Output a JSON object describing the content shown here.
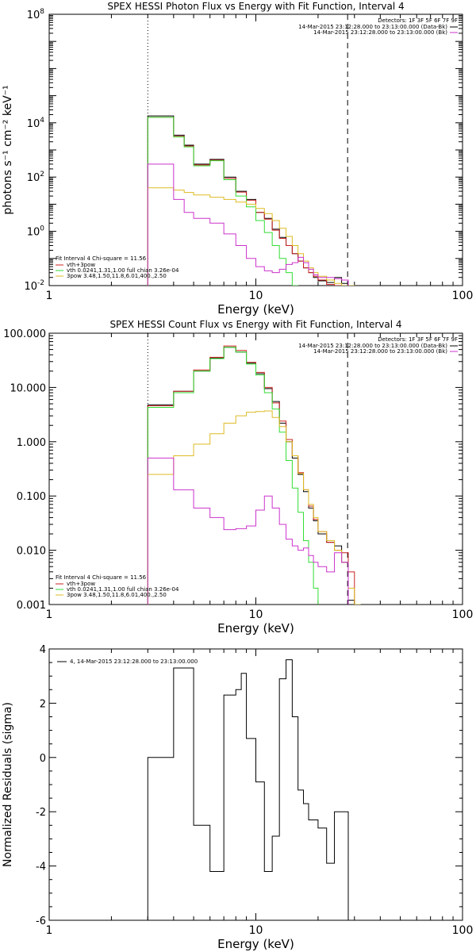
{
  "figure": {
    "background": "#ffffff",
    "axis_color": "#000000"
  },
  "chart_data": [
    {
      "type": "line",
      "step": true,
      "title": "SPEX HESSI Photon Flux vs Energy with Fit Function, Interval 4",
      "xlabel": "Energy (keV)",
      "ylabel": "photons s⁻¹ cm⁻² keV⁻¹",
      "xscale": "log",
      "yscale": "log",
      "xlim": [
        1,
        100
      ],
      "ylim": [
        0.01,
        100000000
      ],
      "xticks": [
        1,
        10,
        100
      ],
      "xtick_labels": [
        "1",
        "10",
        "100"
      ],
      "yticks": [
        0.01,
        1,
        100,
        10000,
        100000000
      ],
      "ytick_labels": [
        {
          "mantissa": "10",
          "exp": "-2"
        },
        {
          "mantissa": "10",
          "exp": "0"
        },
        {
          "mantissa": "10",
          "exp": "2"
        },
        {
          "mantissa": "10",
          "exp": "4"
        },
        {
          "mantissa": "10",
          "exp": "8"
        }
      ],
      "vlines": [
        {
          "x": 3.0,
          "style": "dotted",
          "color": "#000000"
        },
        {
          "x": 27.8,
          "style": "dashed",
          "color": "#000000"
        }
      ],
      "legend_topright": {
        "header": "Detectors: 1F 3F 5F 6F 7F 9F",
        "entries": [
          {
            "label": "14-Mar-2015 23:12:28.000 to 23:13:00.000 (Data-Bk)",
            "color": "#000000"
          },
          {
            "label": "14-Mar-2015 23:12:28.000 to 23:13:00.000 (Bk)",
            "color": "#cc33cc"
          }
        ]
      },
      "legend_bottomleft": {
        "header": "Fit Interval 4   Chi-square = 11.56",
        "entries": [
          {
            "label": "vth+3pow",
            "color": "#cc2222"
          },
          {
            "label": "vth 0.0241,1.31,1.00  full chian 3.26e-04",
            "color": "#33dd33"
          },
          {
            "label": "3pow 3.48,1.50,11.8,6.01,400.,2.50",
            "color": "#ddbb22"
          }
        ]
      },
      "edges": [
        3.0,
        3.5,
        4.0,
        4.5,
        5.0,
        6.0,
        7.0,
        8.0,
        9.0,
        10.0,
        11.0,
        12.0,
        13.0,
        14.0,
        15.0,
        16.0,
        17.0,
        18.0,
        19.0,
        20.0,
        22.0,
        24.0,
        26.0,
        28.0,
        30.0
      ],
      "series": [
        {
          "name": "data",
          "color": "#000000",
          "values": [
            18000,
            18000,
            3500,
            1500,
            300,
            450,
            100,
            30,
            15,
            5,
            3,
            1.2,
            0.6,
            0.3,
            0.15,
            0.08,
            0.045,
            0.03,
            0.02,
            0.015,
            0.013,
            0.02,
            0.012,
            null
          ]
        },
        {
          "name": "vth+3pow",
          "color": "#cc2222",
          "values": [
            16000,
            16000,
            3200,
            1400,
            280,
            420,
            90,
            28,
            14,
            5,
            2.8,
            1.1,
            0.55,
            0.3,
            0.15,
            0.08,
            0.045,
            0.03,
            0.022,
            0.016,
            0.011,
            0.01,
            0.01,
            null
          ]
        },
        {
          "name": "vth",
          "color": "#33dd33",
          "values": [
            16000,
            16000,
            3000,
            1300,
            260,
            400,
            80,
            20,
            8,
            2.5,
            0.9,
            0.3,
            0.1,
            0.03,
            0.01,
            null,
            null,
            null,
            null,
            null,
            null,
            null,
            null,
            null
          ]
        },
        {
          "name": "3pow",
          "color": "#ddbb22",
          "values": [
            40,
            40,
            33,
            27,
            22,
            18,
            15,
            12,
            10,
            7,
            4.5,
            2.5,
            1.3,
            0.65,
            0.3,
            0.15,
            0.08,
            0.045,
            0.03,
            0.022,
            0.016,
            0.012,
            0.01,
            0.01
          ]
        },
        {
          "name": "bk",
          "color": "#cc33cc",
          "values": [
            300,
            300,
            15,
            5,
            3,
            2,
            0.8,
            0.3,
            0.1,
            0.05,
            0.035,
            0.03,
            0.04,
            0.06,
            0.07,
            0.11,
            0.07,
            0.04,
            0.025,
            0.02,
            0.02,
            0.018,
            0.016,
            null
          ]
        }
      ]
    },
    {
      "type": "line",
      "step": true,
      "title": "SPEX HESSI Count Flux vs Energy with Fit Function, Interval 4",
      "xlabel": "Energy (keV)",
      "ylabel": "",
      "xscale": "log",
      "yscale": "log",
      "xlim": [
        1,
        100
      ],
      "ylim": [
        0.001,
        100
      ],
      "xticks": [
        1,
        10,
        100
      ],
      "xtick_labels": [
        "1",
        "10",
        "100"
      ],
      "yticks": [
        0.001,
        0.01,
        0.1,
        1,
        10,
        100
      ],
      "ytick_labels": [
        "0.001",
        "0.010",
        "0.100",
        "1.000",
        "10.000",
        "100.000"
      ],
      "vlines": [
        {
          "x": 3.0,
          "style": "dotted",
          "color": "#000000"
        },
        {
          "x": 27.8,
          "style": "dashed",
          "color": "#000000"
        }
      ],
      "legend_topright": {
        "header": "Detectors: 1F 3F 5F 6F 7F 9F",
        "entries": [
          {
            "label": "14-Mar-2015 23:12:28.000 to 23:13:00.000 (Data-Bk)",
            "color": "#000000"
          },
          {
            "label": "14-Mar-2015 23:12:28.000 to 23:13:00.000 (Bk)",
            "color": "#cc33cc"
          }
        ]
      },
      "legend_bottomleft": {
        "header": "Fit Interval 4   Chi-square = 11.56",
        "entries": [
          {
            "label": "vth+3pow",
            "color": "#cc2222"
          },
          {
            "label": "vth 0.0241,1.31,1.00  full chian 3.26e-04",
            "color": "#33dd33"
          },
          {
            "label": "3pow 3.48,1.50,11.8,6.01,400.,2.50",
            "color": "#ddbb22"
          }
        ]
      },
      "edges": [
        3.0,
        4.0,
        5.0,
        6.0,
        7.0,
        8.0,
        9.0,
        10.0,
        11.0,
        12.0,
        13.0,
        14.0,
        15.0,
        16.0,
        17.0,
        18.0,
        19.0,
        20.0,
        22.0,
        24.0,
        26.0,
        28.0,
        30.0,
        32.0
      ],
      "series": [
        {
          "name": "data",
          "color": "#000000",
          "values": [
            4.8,
            8.5,
            20,
            35,
            55,
            45,
            28,
            18,
            9.5,
            5.5,
            2.2,
            1.0,
            0.5,
            0.25,
            0.12,
            0.06,
            0.035,
            0.02,
            0.014,
            0.012,
            0.006,
            0.0012,
            null
          ]
        },
        {
          "name": "vth+3pow",
          "color": "#cc2222",
          "values": [
            4.6,
            8.5,
            21,
            36,
            58,
            48,
            29,
            19,
            10,
            5.2,
            2.4,
            1.1,
            0.55,
            0.27,
            0.13,
            0.065,
            0.037,
            0.022,
            0.014,
            0.01,
            0.009,
            0.004,
            null
          ]
        },
        {
          "name": "vth",
          "color": "#33dd33",
          "values": [
            4.3,
            8.0,
            20,
            34,
            55,
            45,
            27,
            17,
            8,
            4,
            1.5,
            0.45,
            0.14,
            0.05,
            0.015,
            0.006,
            0.002,
            null,
            null,
            null,
            null,
            null,
            null
          ]
        },
        {
          "name": "3pow",
          "color": "#ddbb22",
          "values": [
            0.25,
            0.55,
            0.9,
            1.4,
            2.2,
            3.0,
            3.5,
            3.6,
            3.7,
            2.8,
            1.9,
            1.0,
            0.55,
            0.26,
            0.13,
            0.07,
            0.04,
            0.022,
            0.015,
            0.01,
            0.006,
            0.002,
            0.001
          ]
        },
        {
          "name": "bk",
          "color": "#cc33cc",
          "values": [
            0.5,
            0.13,
            0.06,
            0.04,
            0.024,
            0.025,
            0.028,
            0.055,
            0.1,
            0.06,
            0.03,
            0.016,
            0.012,
            0.01,
            0.011,
            0.008,
            0.006,
            0.005,
            0.004,
            0.009,
            0.006,
            null,
            null
          ]
        }
      ]
    },
    {
      "type": "line",
      "step": true,
      "title": "",
      "xlabel": "Energy (keV)",
      "ylabel": "Normalized Residuals (sigma)",
      "xscale": "log",
      "yscale": "linear",
      "xlim": [
        1,
        100
      ],
      "ylim": [
        -6,
        4
      ],
      "xticks": [
        1,
        10,
        100
      ],
      "xtick_labels": [
        "1",
        "10",
        "100"
      ],
      "yticks": [
        -6,
        -4,
        -2,
        0,
        2,
        4
      ],
      "ytick_labels": [
        "-6",
        "-4",
        "-2",
        "0",
        "2",
        "4"
      ],
      "legend_topleft": {
        "entries": [
          {
            "label": "4, 14-Mar-2015 23:12:28.000 to 23:13:00.000",
            "color": "#000000"
          }
        ]
      },
      "edges": [
        3.0,
        3.5,
        4.0,
        4.5,
        5.0,
        5.5,
        6.0,
        7.0,
        8.0,
        8.5,
        9.0,
        10.0,
        11.0,
        12.0,
        13.0,
        14.0,
        15.0,
        16.0,
        17.0,
        18.0,
        19.0,
        20.0,
        22.0,
        24.0,
        26.0,
        28.0
      ],
      "series": [
        {
          "name": "residuals",
          "color": "#000000",
          "drop_ends": true,
          "values": [
            0.0,
            0.0,
            3.3,
            3.3,
            -2.5,
            -2.5,
            -4.2,
            2.3,
            2.5,
            3.1,
            0.7,
            -0.9,
            -4.2,
            -2.9,
            2.9,
            3.6,
            1.5,
            -1.2,
            -1.7,
            -2.3,
            -2.3,
            -2.6,
            -3.9,
            -2.0,
            -2.0
          ]
        }
      ]
    }
  ]
}
